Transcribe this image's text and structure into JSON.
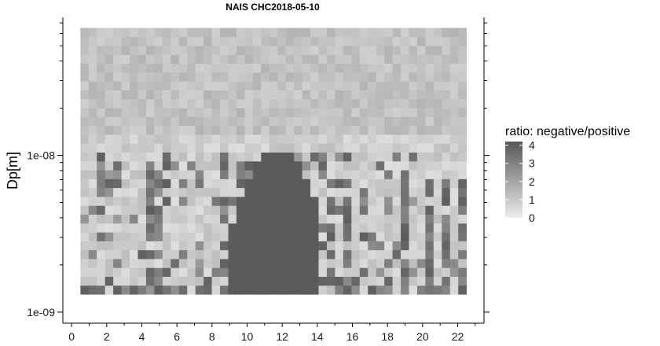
{
  "chart_data": {
    "type": "heatmap",
    "title": "NAIS CHC2018-05-10",
    "xlabel": "",
    "ylabel": "Dp[m]",
    "x_ticks": [
      0,
      2,
      4,
      6,
      8,
      10,
      12,
      14,
      16,
      18,
      20,
      22
    ],
    "x_range": [
      -0.5,
      23.5
    ],
    "y_scale": "log",
    "y_tick_labels": [
      "1e-09",
      "1e-08"
    ],
    "y_tick_values": [
      1e-09,
      1e-08
    ],
    "y_range": [
      8.5e-10,
      7.6e-08
    ],
    "x_start": 0.5,
    "x_end": 22.5,
    "n_time": 47,
    "dp_min": 1.3e-09,
    "dp_max": 6.5e-08,
    "n_dp": 30,
    "fill_value_range": [
      0,
      4.2
    ],
    "colors": {
      "low": "#ececec",
      "high": "#575757",
      "edge": "#dcdcdc",
      "background": "#ffffff"
    },
    "legend": {
      "title": "ratio: negative/positive",
      "ticks": [
        "0",
        "1",
        "2",
        "3",
        "4"
      ],
      "tick_values": [
        0,
        1,
        2,
        3,
        4
      ],
      "placement": "right"
    },
    "grid": false,
    "features": {
      "background_ratio": "0.3 to 2 (light grey, noisy)",
      "dark_event": {
        "time_start": 8.9,
        "time_end": 14.2,
        "dp_min": 1.5e-09,
        "dp_max": 1.1e-08,
        "ratio": 4.1
      },
      "evening_streaks": {
        "time_start": 14,
        "time_end": 23,
        "dp_max": 1e-08,
        "ratio": "2.5 to 4"
      }
    }
  }
}
